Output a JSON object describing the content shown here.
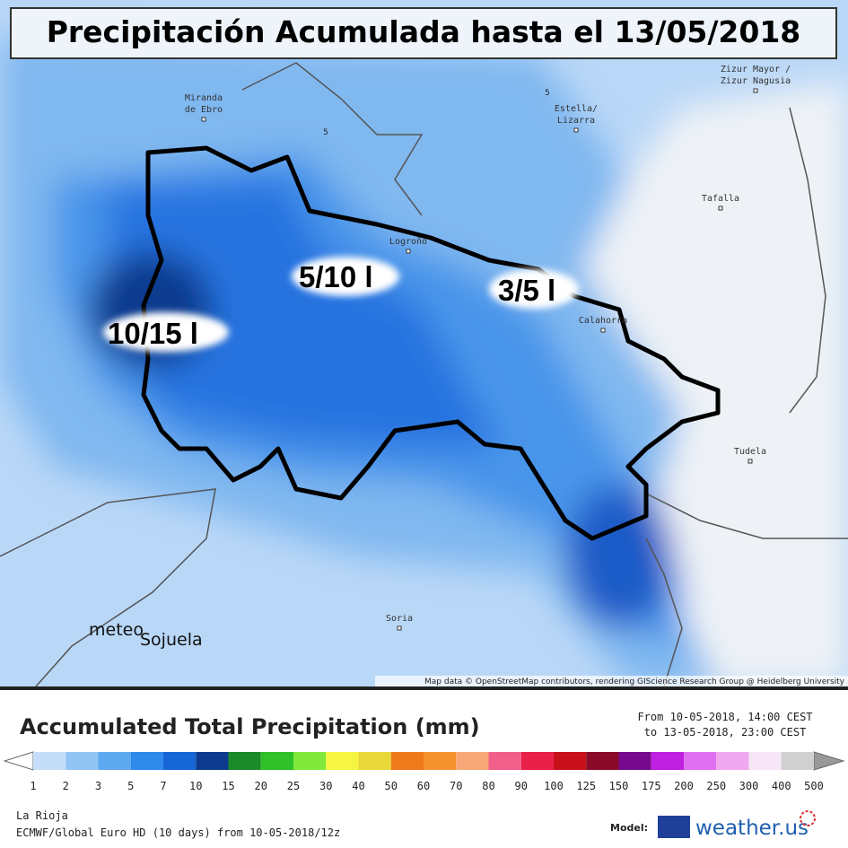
{
  "header": {
    "title": "Precipitación Acumulada hasta el 13/05/2018"
  },
  "map": {
    "places": [
      {
        "lines": [
          "Miranda",
          "de Ebro"
        ]
      },
      {
        "lines": [
          "Estella/",
          "Lizarra"
        ]
      },
      {
        "lines": [
          "Zizur Mayor /",
          "Zizur Nagusia"
        ]
      },
      {
        "lines": [
          "Tafalla"
        ]
      },
      {
        "lines": [
          "Logroño"
        ]
      },
      {
        "lines": [
          "Calahorra"
        ]
      },
      {
        "lines": [
          "Tudela"
        ]
      },
      {
        "lines": [
          "Soria"
        ]
      }
    ],
    "contour_labels": [
      "5",
      "5"
    ],
    "region_labels": [
      "10/15 l",
      "5/10 l",
      "3/5 l"
    ],
    "watermark": [
      "meteo",
      "Sojuela"
    ],
    "attribution": "Map data © OpenStreetMap contributors, rendering GIScience Research Group @ Heidelberg University"
  },
  "legend": {
    "title": "Accumulated Total Precipitation (mm)",
    "period": [
      "From 10-05-2018, 14:00 CEST",
      "to 13-05-2018, 23:00 CEST"
    ],
    "scale": [
      1,
      2,
      3,
      5,
      7,
      10,
      15,
      20,
      25,
      30,
      40,
      50,
      60,
      70,
      80,
      90,
      100,
      125,
      150,
      175,
      200,
      250,
      300,
      400,
      500
    ],
    "colors": [
      "#c4defa",
      "#92c4f4",
      "#5ea8f0",
      "#2f8aec",
      "#1766d6",
      "#0c3b8e",
      "#1a8a2a",
      "#2fc02a",
      "#80e83a",
      "#f6f542",
      "#e8d83a",
      "#ef7a1a",
      "#f6922c",
      "#f8a878",
      "#f0608a",
      "#e8204a",
      "#c8101a",
      "#8a0a2a",
      "#760a8c",
      "#c020e0",
      "#e070f0",
      "#f0a8f0",
      "#f6e6f6",
      "#d0d0d0"
    ],
    "region": "La Rioja",
    "source": "ECMWF/Global Euro HD (10 days) from 10-05-2018/12z",
    "model_label": "Model:",
    "brand": "weather.us"
  }
}
